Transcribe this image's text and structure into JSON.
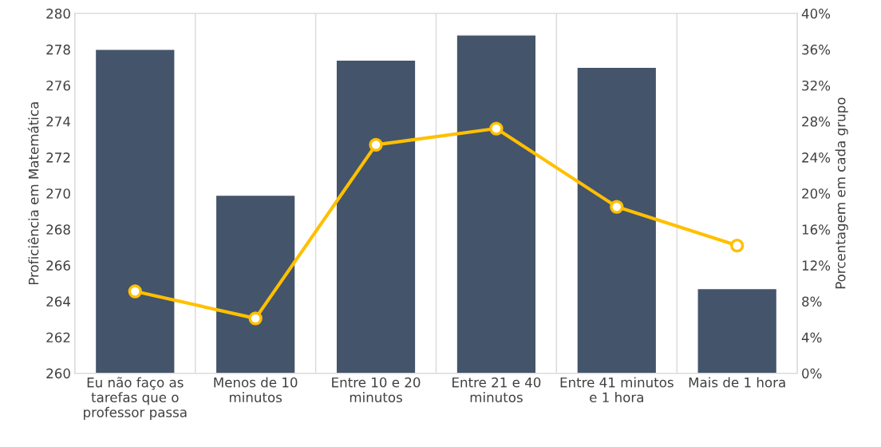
{
  "chart_data": {
    "type": "bar",
    "ylabel": "Proficiência em Matemática",
    "y2label": "Porcentagem em cada grupo",
    "categories": [
      "Eu não faço as\ntarefas que o\nprofessor passa",
      "Menos de 10\nminutos",
      "Entre 10 e 20\nminutos",
      "Entre 21 e 40\nminutos",
      "Entre 41 minutos\ne 1 hora",
      "Mais de 1 hora"
    ],
    "series": [
      {
        "color": "#44546a",
        "values": [
          278.0,
          269.9,
          277.4,
          278.8,
          277.0,
          264.7
        ]
      },
      {
        "type": "line",
        "axis": "y2",
        "color": "#ffc000",
        "marker": "circle",
        "line_style": "solid",
        "values": [
          9.1,
          6.1,
          25.4,
          27.2,
          18.5,
          14.2
        ]
      }
    ],
    "ylim": [
      260,
      280
    ],
    "yticks": [
      260,
      262,
      264,
      266,
      268,
      270,
      272,
      274,
      276,
      278,
      280
    ],
    "y2lim": [
      0,
      40
    ],
    "y2ticks": [
      {
        "value": 0,
        "label": "0%"
      },
      {
        "value": 4,
        "label": "4%"
      },
      {
        "value": 8,
        "label": "8%"
      },
      {
        "value": 12,
        "label": "12%"
      },
      {
        "value": 16,
        "label": "16%"
      },
      {
        "value": 20,
        "label": "20%"
      },
      {
        "value": 24,
        "label": "24%"
      },
      {
        "value": 28,
        "label": "28%"
      },
      {
        "value": 32,
        "label": "32%"
      },
      {
        "value": 36,
        "label": "36%"
      },
      {
        "value": 40,
        "label": "40%"
      }
    ],
    "grid": "x",
    "legend": false
  }
}
